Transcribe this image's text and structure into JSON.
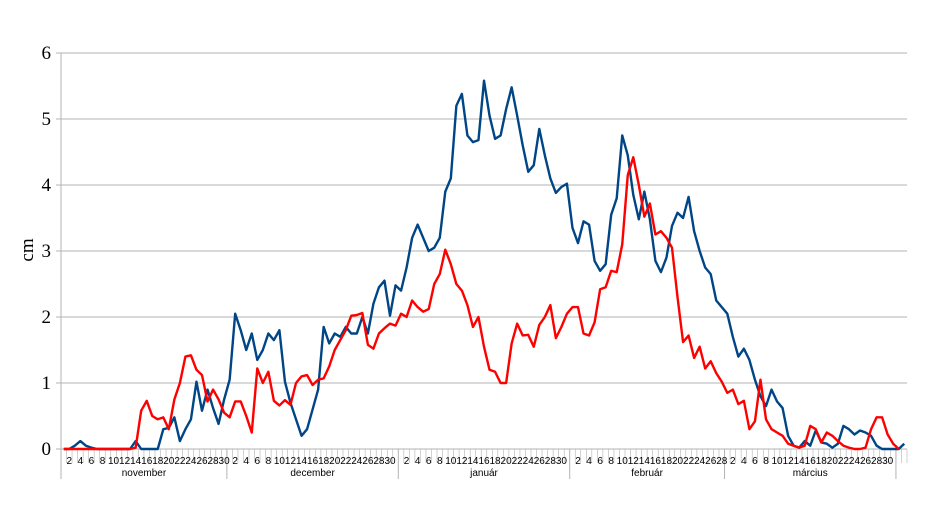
{
  "chart_data": {
    "type": "line",
    "ylabel": "cm",
    "xlabel": "",
    "ylim": [
      0,
      6
    ],
    "yticks": [
      "0",
      "1",
      "2",
      "3",
      "4",
      "5",
      "6"
    ],
    "grid": "horizontal",
    "months": [
      {
        "name": "november",
        "start": 1,
        "days": 30
      },
      {
        "name": "december",
        "start": 31,
        "days": 31
      },
      {
        "name": "január",
        "start": 62,
        "days": 31
      },
      {
        "name": "február",
        "start": 93,
        "days": 28
      },
      {
        "name": "március",
        "start": 121,
        "days": 31
      }
    ],
    "series": [
      {
        "name": "",
        "color": "#004586",
        "values": [
          0,
          0,
          0.05,
          0.12,
          0.05,
          0.02,
          0,
          0,
          0,
          0,
          0,
          0,
          0,
          0.12,
          0,
          0,
          0,
          0,
          0.3,
          0.32,
          0.48,
          0.12,
          0.3,
          0.45,
          1.02,
          0.58,
          0.9,
          0.62,
          0.38,
          0.75,
          1.05,
          2.05,
          1.8,
          1.5,
          1.75,
          1.35,
          1.5,
          1.75,
          1.65,
          1.8,
          1.02,
          0.7,
          0.45,
          0.2,
          0.3,
          0.6,
          0.9,
          1.85,
          1.6,
          1.75,
          1.7,
          1.85,
          1.75,
          1.75,
          2.0,
          1.75,
          2.2,
          2.45,
          2.55,
          2.02,
          2.48,
          2.4,
          2.75,
          3.2,
          3.4,
          3.2,
          3.0,
          3.05,
          3.2,
          3.9,
          4.1,
          5.2,
          5.38,
          4.75,
          4.65,
          4.68,
          5.58,
          5.05,
          4.7,
          4.75,
          5.15,
          5.48,
          5.05,
          4.6,
          4.2,
          4.3,
          4.85,
          4.45,
          4.1,
          3.88,
          3.97,
          4.02,
          3.35,
          3.12,
          3.45,
          3.4,
          2.85,
          2.7,
          2.8,
          3.55,
          3.8,
          4.75,
          4.45,
          3.85,
          3.48,
          3.9,
          3.48,
          2.85,
          2.68,
          2.9,
          3.38,
          3.58,
          3.5,
          3.82,
          3.3,
          3.0,
          2.75,
          2.65,
          2.25,
          2.15,
          2.05,
          1.7,
          1.4,
          1.52,
          1.35,
          1.05,
          0.8,
          0.65,
          0.9,
          0.72,
          0.62,
          0.2,
          0.05,
          0.02,
          0.12,
          0.05,
          0.28,
          0.1,
          0.08,
          0.02,
          0.08,
          0.35,
          0.3,
          0.22,
          0.28,
          0.25,
          0.2,
          0.05,
          0,
          0,
          0,
          0,
          0.08
        ]
      },
      {
        "name": "",
        "color": "#ff0000",
        "values": [
          0,
          0,
          0,
          0,
          0,
          0,
          0,
          0,
          0,
          0,
          0,
          0,
          0,
          0.02,
          0.58,
          0.73,
          0.5,
          0.45,
          0.48,
          0.3,
          0.75,
          1.0,
          1.4,
          1.42,
          1.2,
          1.12,
          0.72,
          0.9,
          0.75,
          0.55,
          0.48,
          0.72,
          0.72,
          0.5,
          0.25,
          1.22,
          1.0,
          1.17,
          0.73,
          0.66,
          0.74,
          0.67,
          1.0,
          1.1,
          1.12,
          0.97,
          1.05,
          1.07,
          1.25,
          1.5,
          1.65,
          1.8,
          2.02,
          2.03,
          2.06,
          1.58,
          1.52,
          1.75,
          1.83,
          1.9,
          1.87,
          2.05,
          2.0,
          2.25,
          2.15,
          2.08,
          2.12,
          2.5,
          2.65,
          3.02,
          2.8,
          2.5,
          2.4,
          2.18,
          1.85,
          2.0,
          1.55,
          1.2,
          1.17,
          1.0,
          1.0,
          1.6,
          1.9,
          1.72,
          1.73,
          1.55,
          1.88,
          2.0,
          2.18,
          1.68,
          1.85,
          2.05,
          2.15,
          2.15,
          1.75,
          1.72,
          1.92,
          2.42,
          2.45,
          2.7,
          2.68,
          3.1,
          4.15,
          4.42,
          4.0,
          3.52,
          3.72,
          3.25,
          3.3,
          3.2,
          3.05,
          2.3,
          1.62,
          1.72,
          1.38,
          1.55,
          1.22,
          1.33,
          1.15,
          1.02,
          0.85,
          0.9,
          0.68,
          0.73,
          0.3,
          0.42,
          1.05,
          0.45,
          0.3,
          0.25,
          0.2,
          0.08,
          0.05,
          0.02,
          0.05,
          0.35,
          0.3,
          0.1,
          0.25,
          0.2,
          0.12,
          0.05,
          0.02,
          0,
          0,
          0.02,
          0.3,
          0.48,
          0.48,
          0.22,
          0.08,
          0
        ]
      }
    ]
  }
}
